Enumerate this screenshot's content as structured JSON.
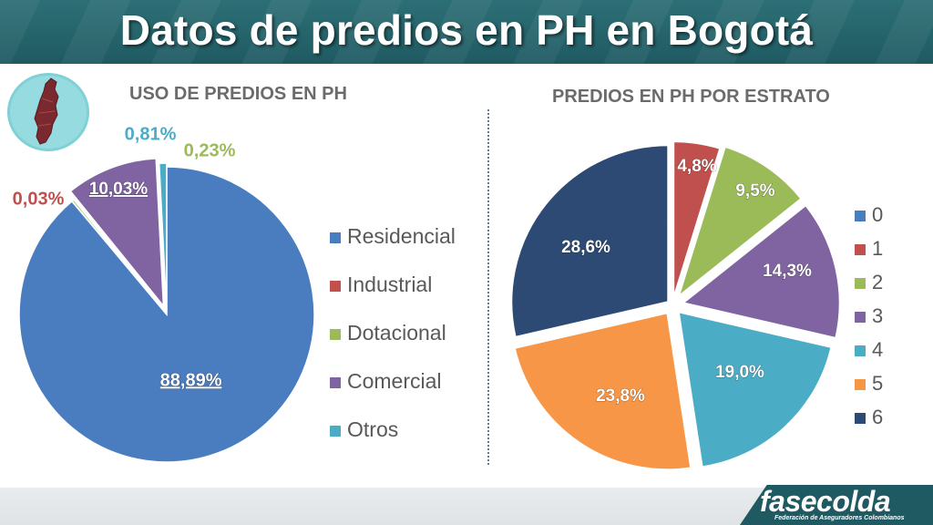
{
  "header": {
    "title": "Datos de predios en PH en Bogotá"
  },
  "footer": {
    "logo_name": "fasecolda",
    "logo_sub": "Federación de Aseguradores Colombianos"
  },
  "chart_data": [
    {
      "type": "pie",
      "title": "USO DE PREDIOS EN PH",
      "categories": [
        "Residencial",
        "Industrial",
        "Dotacional",
        "Comercial",
        "Otros"
      ],
      "values": [
        88.89,
        0.03,
        0.23,
        10.03,
        0.81
      ],
      "data_labels": [
        "88,89%",
        "0,03%",
        "0,23%",
        "10,03%",
        "0,81%"
      ],
      "colors": [
        "#4a7dbf",
        "#c0504d",
        "#9bbb59",
        "#8064a2",
        "#4bacc6"
      ],
      "legend": "right"
    },
    {
      "type": "pie",
      "title": "PREDIOS EN PH POR ESTRATO",
      "categories": [
        "0",
        "1",
        "2",
        "3",
        "4",
        "5",
        "6"
      ],
      "values": [
        0,
        4.8,
        9.5,
        14.3,
        19.0,
        23.8,
        28.6
      ],
      "data_labels": [
        "",
        "4,8%",
        "9,5%",
        "14,3%",
        "19,0%",
        "23,8%",
        "28,6%"
      ],
      "colors": [
        "#4a7dbf",
        "#c0504d",
        "#9bbb59",
        "#8064a2",
        "#4bacc6",
        "#f79646",
        "#2c4a74"
      ],
      "legend": "right"
    }
  ]
}
